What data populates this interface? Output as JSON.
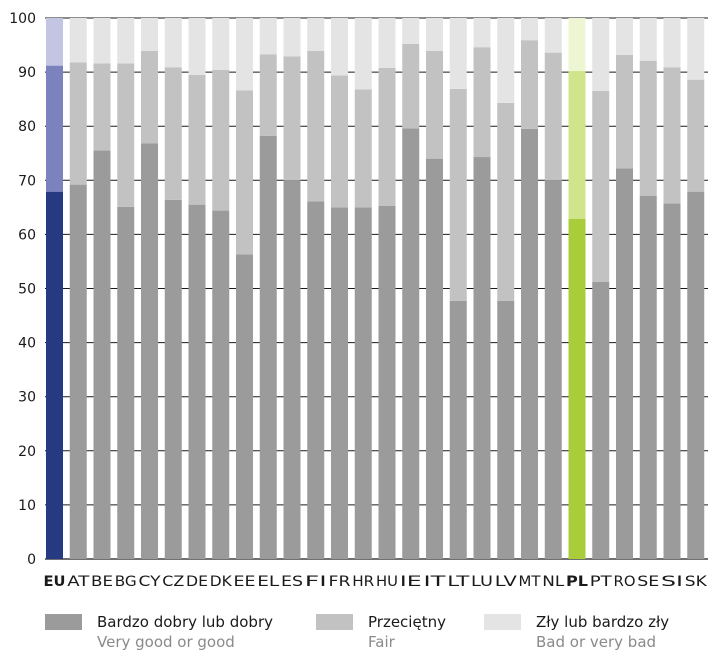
{
  "chart_data": {
    "type": "bar",
    "stacked": true,
    "title": "",
    "xlabel": "",
    "ylabel": "",
    "ylim": [
      0,
      100
    ],
    "yticks": [
      0,
      10,
      20,
      30,
      40,
      50,
      60,
      70,
      80,
      90,
      100
    ],
    "grid": "horizontal",
    "legend_position": "bottom",
    "categories": [
      "EU",
      "AT",
      "BE",
      "BG",
      "CY",
      "CZ",
      "DE",
      "DK",
      "EE",
      "EL",
      "ES",
      "FI",
      "FR",
      "HR",
      "HU",
      "IE",
      "IT",
      "LT",
      "LU",
      "LV",
      "MT",
      "NL",
      "PL",
      "PT",
      "RO",
      "SE",
      "SI",
      "SK"
    ],
    "bold_categories": [
      "EU",
      "PL"
    ],
    "series": [
      {
        "name": "Bardzo dobry lub dobry",
        "name_en": "Very good or good",
        "values": [
          67.9,
          69.2,
          75.5,
          65.1,
          76.8,
          66.4,
          65.5,
          64.4,
          56.3,
          78.2,
          70.0,
          66.1,
          65.0,
          65.0,
          65.3,
          79.6,
          74.0,
          47.7,
          74.3,
          47.7,
          79.5,
          70.0,
          62.9,
          51.2,
          72.2,
          67.1,
          65.7,
          67.9
        ]
      },
      {
        "name": "Przeciętny",
        "name_en": "Fair",
        "values": [
          23.3,
          22.6,
          16.1,
          26.5,
          17.1,
          24.5,
          24.0,
          26.0,
          30.3,
          15.1,
          22.9,
          27.8,
          24.4,
          21.8,
          25.5,
          15.6,
          19.9,
          39.2,
          20.3,
          36.6,
          16.4,
          23.6,
          27.3,
          35.3,
          21.0,
          25.0,
          25.2,
          20.7
        ]
      },
      {
        "name": "Zły lub bardzo zły",
        "name_en": "Bad or very bad",
        "values": [
          8.8,
          8.2,
          8.4,
          8.4,
          6.1,
          9.1,
          10.5,
          9.6,
          13.4,
          6.7,
          7.1,
          6.1,
          10.6,
          13.2,
          9.2,
          4.8,
          6.1,
          13.1,
          5.4,
          15.7,
          4.1,
          6.4,
          9.8,
          13.5,
          6.8,
          7.9,
          9.1,
          11.4
        ]
      }
    ],
    "colors": {
      "default": [
        "#9b9b9b",
        "#c2c2c2",
        "#e4e4e4"
      ],
      "EU": [
        "#263a82",
        "#7c82bd",
        "#c2c6e2"
      ],
      "PL": [
        "#a8cc3a",
        "#d0e48c",
        "#edf5d3"
      ]
    },
    "legend": [
      {
        "label": "Bardzo dobry lub dobry",
        "sublabel": "Very good or good",
        "color": "#9b9b9b"
      },
      {
        "label": "Przeciętny",
        "sublabel": "Fair",
        "color": "#c2c2c2"
      },
      {
        "label": "Zły lub bardzo zły",
        "sublabel": "Bad or very bad",
        "color": "#e4e4e4"
      }
    ]
  }
}
